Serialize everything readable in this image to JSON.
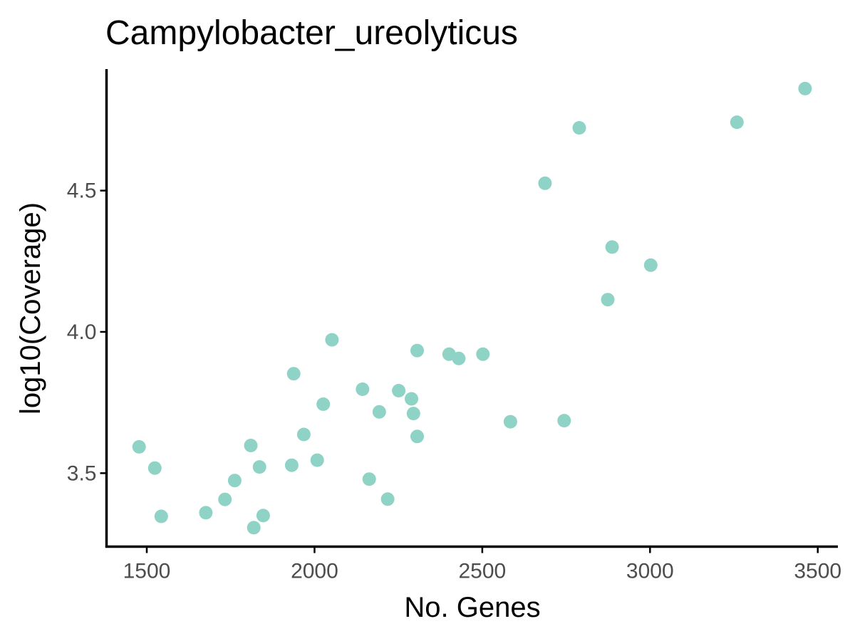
{
  "chart_data": {
    "type": "scatter",
    "title": "Campylobacter_ureolyticus",
    "xlabel": "No. Genes",
    "ylabel": "log10(Coverage)",
    "xlim": [
      1380,
      3560
    ],
    "ylim": [
      3.24,
      4.93
    ],
    "xticks": [
      1500,
      2000,
      2500,
      3000,
      3500
    ],
    "xtick_labels": [
      "1500",
      "2000",
      "2500",
      "3000",
      "3500"
    ],
    "yticks": [
      3.5,
      4.0,
      4.5
    ],
    "ytick_labels": [
      "3.5",
      "4.0",
      "4.5"
    ],
    "grid": false,
    "legend": "none",
    "point_color": "#8fd3c6",
    "points": [
      {
        "x": 1477,
        "y": 3.593
      },
      {
        "x": 1524,
        "y": 3.518
      },
      {
        "x": 1543,
        "y": 3.347
      },
      {
        "x": 1676,
        "y": 3.36
      },
      {
        "x": 1733,
        "y": 3.407
      },
      {
        "x": 1762,
        "y": 3.474
      },
      {
        "x": 1810,
        "y": 3.598
      },
      {
        "x": 1819,
        "y": 3.307
      },
      {
        "x": 1836,
        "y": 3.522
      },
      {
        "x": 1847,
        "y": 3.35
      },
      {
        "x": 1932,
        "y": 3.528
      },
      {
        "x": 1938,
        "y": 3.852
      },
      {
        "x": 1968,
        "y": 3.637
      },
      {
        "x": 2008,
        "y": 3.546
      },
      {
        "x": 2026,
        "y": 3.744
      },
      {
        "x": 2052,
        "y": 3.972
      },
      {
        "x": 2143,
        "y": 3.797
      },
      {
        "x": 2163,
        "y": 3.479
      },
      {
        "x": 2193,
        "y": 3.717
      },
      {
        "x": 2218,
        "y": 3.408
      },
      {
        "x": 2251,
        "y": 3.792
      },
      {
        "x": 2289,
        "y": 3.763
      },
      {
        "x": 2295,
        "y": 3.711
      },
      {
        "x": 2306,
        "y": 3.934
      },
      {
        "x": 2306,
        "y": 3.63
      },
      {
        "x": 2401,
        "y": 3.921
      },
      {
        "x": 2430,
        "y": 3.906
      },
      {
        "x": 2502,
        "y": 3.921
      },
      {
        "x": 2584,
        "y": 3.682
      },
      {
        "x": 2687,
        "y": 4.526
      },
      {
        "x": 2744,
        "y": 3.686
      },
      {
        "x": 2789,
        "y": 4.722
      },
      {
        "x": 2874,
        "y": 4.114
      },
      {
        "x": 2887,
        "y": 4.3
      },
      {
        "x": 3002,
        "y": 4.236
      },
      {
        "x": 3259,
        "y": 4.742
      },
      {
        "x": 3462,
        "y": 4.861
      }
    ]
  }
}
